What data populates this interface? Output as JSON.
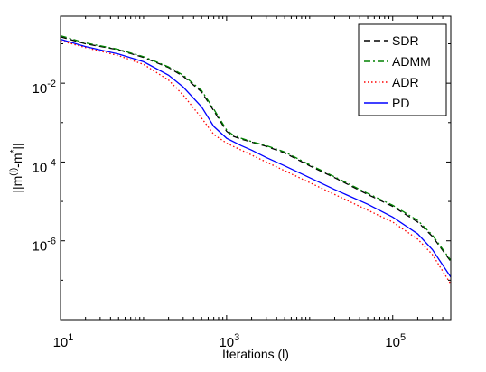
{
  "chart_data": {
    "type": "line",
    "xscale": "log",
    "yscale": "log",
    "xlim": [
      10,
      500000
    ],
    "ylim": [
      1e-08,
      0.5
    ],
    "xlabel": "Iterations (l)",
    "ylabel": "||m(l)-m*||",
    "ylabel_parts": {
      "base": "||m",
      "sup1": "(l)",
      "mid": "-m",
      "sup2": "*",
      "end": "||"
    },
    "grid": false,
    "legend_position": "top-right",
    "x_ticks": [
      10,
      1000,
      100000
    ],
    "x_tick_labels": [
      {
        "base": "10",
        "exp": "1"
      },
      {
        "base": "10",
        "exp": "3"
      },
      {
        "base": "10",
        "exp": "5"
      }
    ],
    "y_ticks": [
      0.01,
      0.0001,
      1e-06
    ],
    "y_tick_labels": [
      {
        "base": "10",
        "exp": "-2"
      },
      {
        "base": "10",
        "exp": "-4"
      },
      {
        "base": "10",
        "exp": "-6"
      }
    ],
    "series": [
      {
        "name": "SDR",
        "color": "#000000",
        "dash": "dashed",
        "x": [
          10,
          20,
          50,
          100,
          200,
          300,
          500,
          700,
          1000,
          1200,
          1500,
          2000,
          3000,
          5000,
          10000,
          20000,
          50000,
          100000,
          200000,
          300000,
          500000
        ],
        "y": [
          0.15,
          0.1,
          0.07,
          0.045,
          0.025,
          0.015,
          0.006,
          0.002,
          0.0006,
          0.00045,
          0.00038,
          0.00032,
          0.00025,
          0.00017,
          8e-05,
          4e-05,
          1.5e-05,
          7.5e-06,
          3e-06,
          1.3e-06,
          3e-07
        ]
      },
      {
        "name": "ADMM",
        "color": "#008000",
        "dash": "dashdot",
        "x": [
          10,
          20,
          50,
          100,
          200,
          300,
          500,
          700,
          1000,
          1200,
          1500,
          2000,
          3000,
          5000,
          10000,
          20000,
          50000,
          100000,
          200000,
          300000,
          500000
        ],
        "y": [
          0.16,
          0.105,
          0.072,
          0.047,
          0.026,
          0.016,
          0.0065,
          0.0022,
          0.00065,
          0.00048,
          0.0004,
          0.00033,
          0.00026,
          0.00018,
          8.5e-05,
          4.2e-05,
          1.6e-05,
          8e-06,
          3.3e-06,
          1.4e-06,
          3.2e-07
        ]
      },
      {
        "name": "ADR",
        "color": "#ff0000",
        "dash": "dotted",
        "x": [
          10,
          20,
          50,
          100,
          200,
          300,
          500,
          700,
          1000,
          1500,
          2000,
          3000,
          5000,
          10000,
          20000,
          50000,
          100000,
          200000,
          300000,
          500000
        ],
        "y": [
          0.12,
          0.08,
          0.05,
          0.03,
          0.012,
          0.005,
          0.0013,
          0.0005,
          0.0003,
          0.0002,
          0.00015,
          0.0001,
          6e-05,
          3e-05,
          1.5e-05,
          6e-06,
          3e-06,
          1.1e-06,
          4.5e-07,
          8e-08
        ]
      },
      {
        "name": "PD",
        "color": "#0000ff",
        "dash": "solid",
        "x": [
          10,
          20,
          50,
          100,
          200,
          300,
          500,
          700,
          1000,
          1500,
          2000,
          3000,
          5000,
          10000,
          20000,
          50000,
          100000,
          200000,
          300000,
          500000
        ],
        "y": [
          0.13,
          0.085,
          0.055,
          0.035,
          0.016,
          0.008,
          0.0025,
          0.0008,
          0.0004,
          0.00026,
          0.0002,
          0.00013,
          8e-05,
          4e-05,
          2e-05,
          8.5e-06,
          4e-06,
          1.5e-06,
          6e-07,
          1.2e-07
        ]
      }
    ]
  }
}
